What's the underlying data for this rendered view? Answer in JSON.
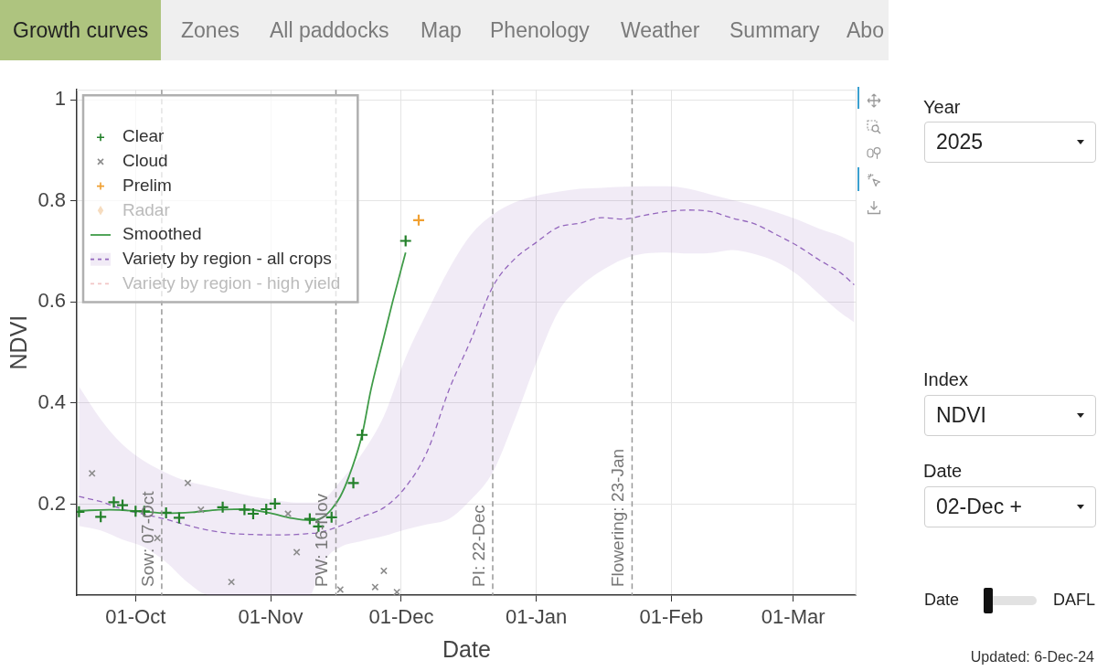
{
  "chart_data": {
    "type": "scatter",
    "xlabel": "Date",
    "ylabel": "NDVI",
    "xlim": [
      "2024-09-17T12:00",
      "2025-03-15T12:00"
    ],
    "xticks": [
      {
        "value": "2024-10-01",
        "label": "01-Oct"
      },
      {
        "value": "2024-11-01",
        "label": "01-Nov"
      },
      {
        "value": "2024-12-01",
        "label": "01-Dec"
      },
      {
        "value": "2025-01-01",
        "label": "01-Jan"
      },
      {
        "value": "2025-02-01",
        "label": "01-Feb"
      },
      {
        "value": "2025-03-01",
        "label": "01-Mar"
      }
    ],
    "ylim": [
      0.02,
      1.02
    ],
    "yticks": [
      0.2,
      0.4,
      0.6,
      0.8,
      1
    ],
    "grid": true,
    "legend": "top left",
    "series": [
      {
        "name": "Clear",
        "color": "#23802a",
        "marker": "cross",
        "x": [
          "2024-09-18",
          "2024-09-23",
          "2024-09-26",
          "2024-09-28",
          "2024-10-01",
          "2024-10-03",
          "2024-10-08",
          "2024-10-11",
          "2024-10-21",
          "2024-10-26",
          "2024-10-28",
          "2024-10-31",
          "2024-11-02",
          "2024-11-10",
          "2024-11-12",
          "2024-11-15",
          "2024-11-20",
          "2024-11-22",
          "2024-12-02"
        ],
        "values": [
          0.185,
          0.175,
          0.204,
          0.198,
          0.186,
          0.186,
          0.183,
          0.173,
          0.194,
          0.189,
          0.181,
          0.19,
          0.201,
          0.171,
          0.156,
          0.174,
          0.242,
          0.337,
          0.721
        ]
      },
      {
        "name": "Cloud",
        "color": "#8c8c8c",
        "marker": "x",
        "x": [
          "2024-09-21",
          "2024-10-06",
          "2024-10-13",
          "2024-10-16",
          "2024-10-23",
          "2024-11-05",
          "2024-11-07",
          "2024-11-17",
          "2024-11-25",
          "2024-11-27",
          "2024-11-30"
        ],
        "values": [
          0.261,
          0.133,
          0.242,
          0.189,
          0.046,
          0.181,
          0.105,
          0.031,
          0.036,
          0.068,
          0.026
        ]
      },
      {
        "name": "Prelim",
        "color": "#f0a032",
        "marker": "cross",
        "x": [
          "2024-12-05"
        ],
        "values": [
          0.762
        ]
      },
      {
        "name": "Radar",
        "color": "#f6dcbf",
        "marker": "diamond"
      },
      {
        "name": "Smoothed",
        "type": "line",
        "color": "#3f9b48",
        "marker": "none",
        "line_style": "solid",
        "x": [
          "2024-09-18",
          "2024-09-25",
          "2024-10-02",
          "2024-10-08",
          "2024-10-14",
          "2024-10-20",
          "2024-10-26",
          "2024-11-01",
          "2024-11-06",
          "2024-11-10",
          "2024-11-13",
          "2024-11-15",
          "2024-11-17",
          "2024-11-19",
          "2024-11-22",
          "2024-11-24",
          "2024-11-27",
          "2024-11-29",
          "2024-12-02"
        ],
        "values": [
          0.187,
          0.189,
          0.186,
          0.182,
          0.184,
          0.189,
          0.19,
          0.182,
          0.172,
          0.168,
          0.174,
          0.19,
          0.215,
          0.255,
          0.337,
          0.425,
          0.53,
          0.6,
          0.698
        ]
      },
      {
        "name": "Variety by region - all crops",
        "type": "line",
        "color": "#9467bd",
        "marker": "none",
        "line_style": "dashed",
        "x": [
          "2024-09-18",
          "2024-09-23",
          "2024-09-28",
          "2024-10-03",
          "2024-10-08",
          "2024-10-13",
          "2024-10-18",
          "2024-10-23",
          "2024-10-28",
          "2024-11-02",
          "2024-11-07",
          "2024-11-10",
          "2024-11-12",
          "2024-11-14",
          "2024-11-17",
          "2024-11-22",
          "2024-11-27",
          "2024-12-02",
          "2024-12-07",
          "2024-12-12",
          "2024-12-17",
          "2024-12-22",
          "2024-12-27",
          "2025-01-01",
          "2025-01-06",
          "2025-01-11",
          "2025-01-16",
          "2025-01-21",
          "2025-01-26",
          "2025-01-31",
          "2025-02-05",
          "2025-02-10",
          "2025-02-15",
          "2025-02-20",
          "2025-02-25",
          "2025-03-02",
          "2025-03-07",
          "2025-03-12",
          "2025-03-15"
        ],
        "values": [
          0.215,
          0.205,
          0.19,
          0.18,
          0.17,
          0.158,
          0.148,
          0.142,
          0.14,
          0.139,
          0.14,
          0.142,
          0.143,
          0.148,
          0.157,
          0.175,
          0.193,
          0.234,
          0.305,
          0.427,
          0.525,
          0.63,
          0.685,
          0.718,
          0.748,
          0.756,
          0.767,
          0.764,
          0.772,
          0.779,
          0.782,
          0.779,
          0.766,
          0.755,
          0.734,
          0.711,
          0.683,
          0.657,
          0.634
        ],
        "lower": [
          0.157,
          0.148,
          0.13,
          0.115,
          0.085,
          0.045,
          0.02,
          0.02,
          0.02,
          0.02,
          0.02,
          0.02,
          0.06,
          0.095,
          0.115,
          0.127,
          0.137,
          0.15,
          0.16,
          0.171,
          0.209,
          0.263,
          0.366,
          0.48,
          0.58,
          0.63,
          0.662,
          0.685,
          0.696,
          0.698,
          0.696,
          0.697,
          0.703,
          0.695,
          0.68,
          0.654,
          0.615,
          0.578,
          0.56
        ],
        "upper": [
          0.433,
          0.368,
          0.318,
          0.285,
          0.262,
          0.245,
          0.235,
          0.225,
          0.215,
          0.208,
          0.203,
          0.203,
          0.205,
          0.215,
          0.245,
          0.3,
          0.374,
          0.49,
          0.581,
          0.666,
          0.733,
          0.773,
          0.797,
          0.81,
          0.818,
          0.824,
          0.826,
          0.828,
          0.829,
          0.829,
          0.824,
          0.813,
          0.802,
          0.791,
          0.778,
          0.763,
          0.745,
          0.73,
          0.717
        ]
      },
      {
        "name": "Variety by region - high yield",
        "type": "line",
        "color": "#f2c6c6",
        "marker": "none",
        "line_style": "dashed"
      }
    ],
    "ref_lines": [
      {
        "axis": "x",
        "value": "2024-10-07",
        "label": "Sow: 07-Oct",
        "color": "#999999",
        "line_style": "dashed"
      },
      {
        "axis": "x",
        "value": "2024-11-16",
        "label": "PW: 16-Nov",
        "color": "#999999",
        "line_style": "dashed"
      },
      {
        "axis": "x",
        "value": "2024-12-22",
        "label": "PI: 22-Dec",
        "color": "#999999",
        "line_style": "dashed"
      },
      {
        "axis": "x",
        "value": "2025-01-23",
        "label": "Flowering: 23-Jan",
        "color": "#999999",
        "line_style": "dashed"
      }
    ],
    "annotations": [
      "Growth curves",
      "Zones",
      "All paddocks",
      "Map",
      "Phenology",
      "Weather",
      "Summary",
      "Abo",
      "Year",
      "2025",
      "Index",
      "NDVI",
      "Date",
      "02-Dec +",
      "Date",
      "DAFL",
      "Updated: 6-Dec-24"
    ]
  }
}
